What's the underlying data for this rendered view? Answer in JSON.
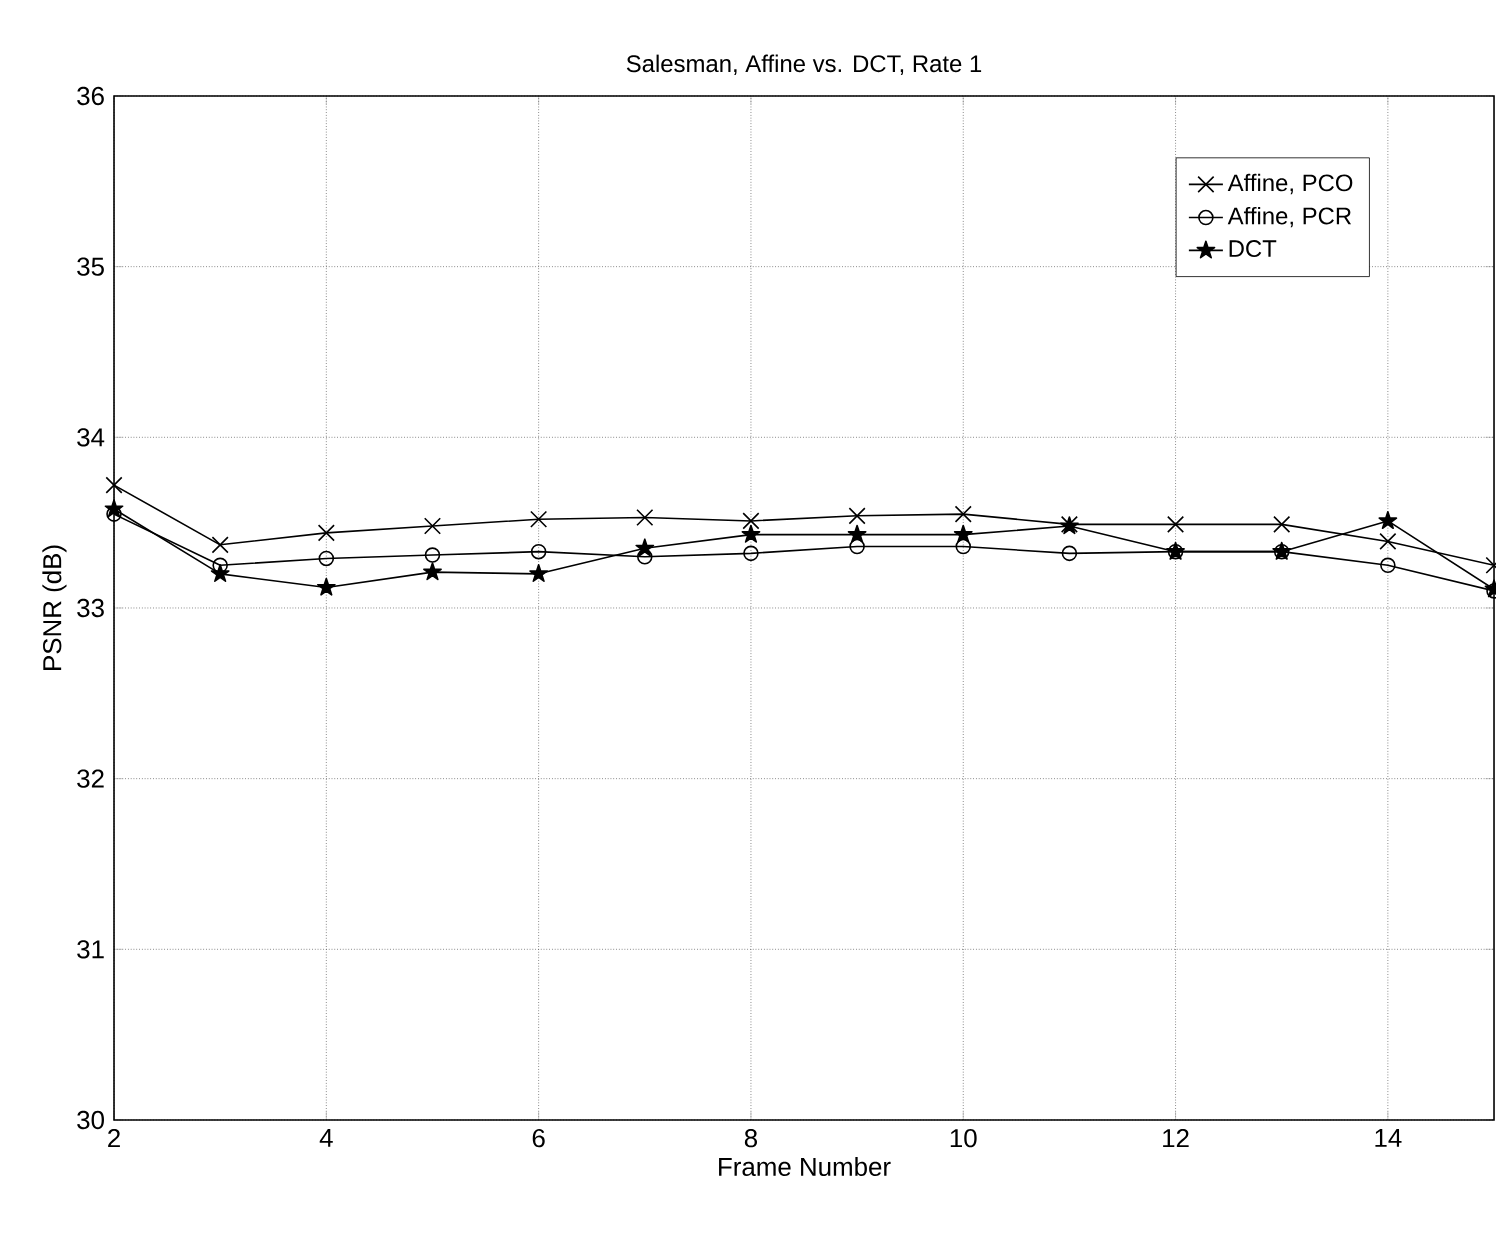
{
  "chart_data": {
    "type": "line",
    "title": "Salesman, Affine vs. DCT, Rate 1",
    "xlabel": "Frame Number",
    "ylabel": "PSNR (dB)",
    "x": [
      2,
      3,
      4,
      5,
      6,
      7,
      8,
      9,
      10,
      11,
      12,
      13,
      14,
      15
    ],
    "series": [
      {
        "name": "Affine, PCO",
        "color": "#000000",
        "marker": "cross",
        "values": [
          33.72,
          33.37,
          33.44,
          33.48,
          33.52,
          33.53,
          33.51,
          33.54,
          33.55,
          33.49,
          33.49,
          33.49,
          33.39,
          33.25
        ]
      },
      {
        "name": "Affine, PCR",
        "color": "#000000",
        "marker": "circle",
        "values": [
          33.55,
          33.25,
          33.29,
          33.31,
          33.33,
          33.3,
          33.32,
          33.36,
          33.36,
          33.32,
          33.33,
          33.33,
          33.25,
          33.1
        ]
      },
      {
        "name": "DCT",
        "color": "#000000",
        "marker": "star",
        "values": [
          33.58,
          33.2,
          33.12,
          33.21,
          33.2,
          33.35,
          33.43,
          33.43,
          33.43,
          33.48,
          33.33,
          33.33,
          33.51,
          33.11
        ]
      }
    ],
    "xlim": [
      2,
      15
    ],
    "ylim": [
      30,
      36
    ],
    "xticks": [
      2,
      4,
      6,
      8,
      10,
      12,
      14
    ],
    "yticks": [
      30,
      31,
      32,
      33,
      34,
      35,
      36
    ],
    "grid": true,
    "legend": "top right",
    "line_style": "solid"
  }
}
